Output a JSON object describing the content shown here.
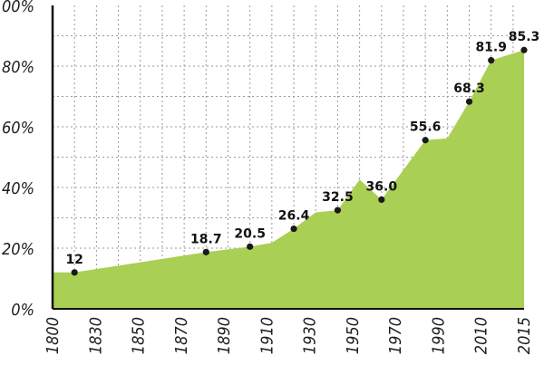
{
  "chart_data": {
    "type": "area",
    "title": "",
    "xlabel": "",
    "ylabel": "",
    "xlim": [
      1800,
      2015
    ],
    "ylim": [
      0,
      100
    ],
    "grid": true,
    "x_ticks": [
      "1800",
      "1830",
      "1850",
      "1870",
      "1890",
      "1910",
      "1930",
      "1950",
      "1970",
      "1990",
      "2010",
      "2015"
    ],
    "y_ticks": [
      "0%",
      "20%",
      "40%",
      "60%",
      "80%",
      "100%"
    ],
    "series": [
      {
        "values": [
          {
            "x": 1800,
            "y": 12
          },
          {
            "x": 1810,
            "y": 12
          },
          {
            "x": 1870,
            "y": 18.7
          },
          {
            "x": 1890,
            "y": 20.5
          },
          {
            "x": 1900,
            "y": 21.8
          },
          {
            "x": 1910,
            "y": 26.4
          },
          {
            "x": 1920,
            "y": 31.8
          },
          {
            "x": 1930,
            "y": 32.5
          },
          {
            "x": 1940,
            "y": 42.6
          },
          {
            "x": 1950,
            "y": 36.0
          },
          {
            "x": 1970,
            "y": 55.6
          },
          {
            "x": 1980,
            "y": 56.2
          },
          {
            "x": 1990,
            "y": 68.3
          },
          {
            "x": 2000,
            "y": 81.9
          },
          {
            "x": 2015,
            "y": 85.3
          }
        ]
      }
    ],
    "labeled_points": [
      {
        "x": 1810,
        "y": 12,
        "label": "12"
      },
      {
        "x": 1870,
        "y": 18.7,
        "label": "18.7"
      },
      {
        "x": 1890,
        "y": 20.5,
        "label": "20.5"
      },
      {
        "x": 1910,
        "y": 26.4,
        "label": "26.4"
      },
      {
        "x": 1930,
        "y": 32.5,
        "label": "32.5"
      },
      {
        "x": 1950,
        "y": 36.0,
        "label": "36.0"
      },
      {
        "x": 1970,
        "y": 55.6,
        "label": "55.6"
      },
      {
        "x": 1990,
        "y": 68.3,
        "label": "68.3"
      },
      {
        "x": 2000,
        "y": 81.9,
        "label": "81.9"
      },
      {
        "x": 2015,
        "y": 85.3,
        "label": "85.3"
      }
    ],
    "colors": {
      "area": "#a9cf54",
      "point": "#1a1a1a",
      "grid": "#9a9a9a",
      "axis": "#111111"
    }
  }
}
